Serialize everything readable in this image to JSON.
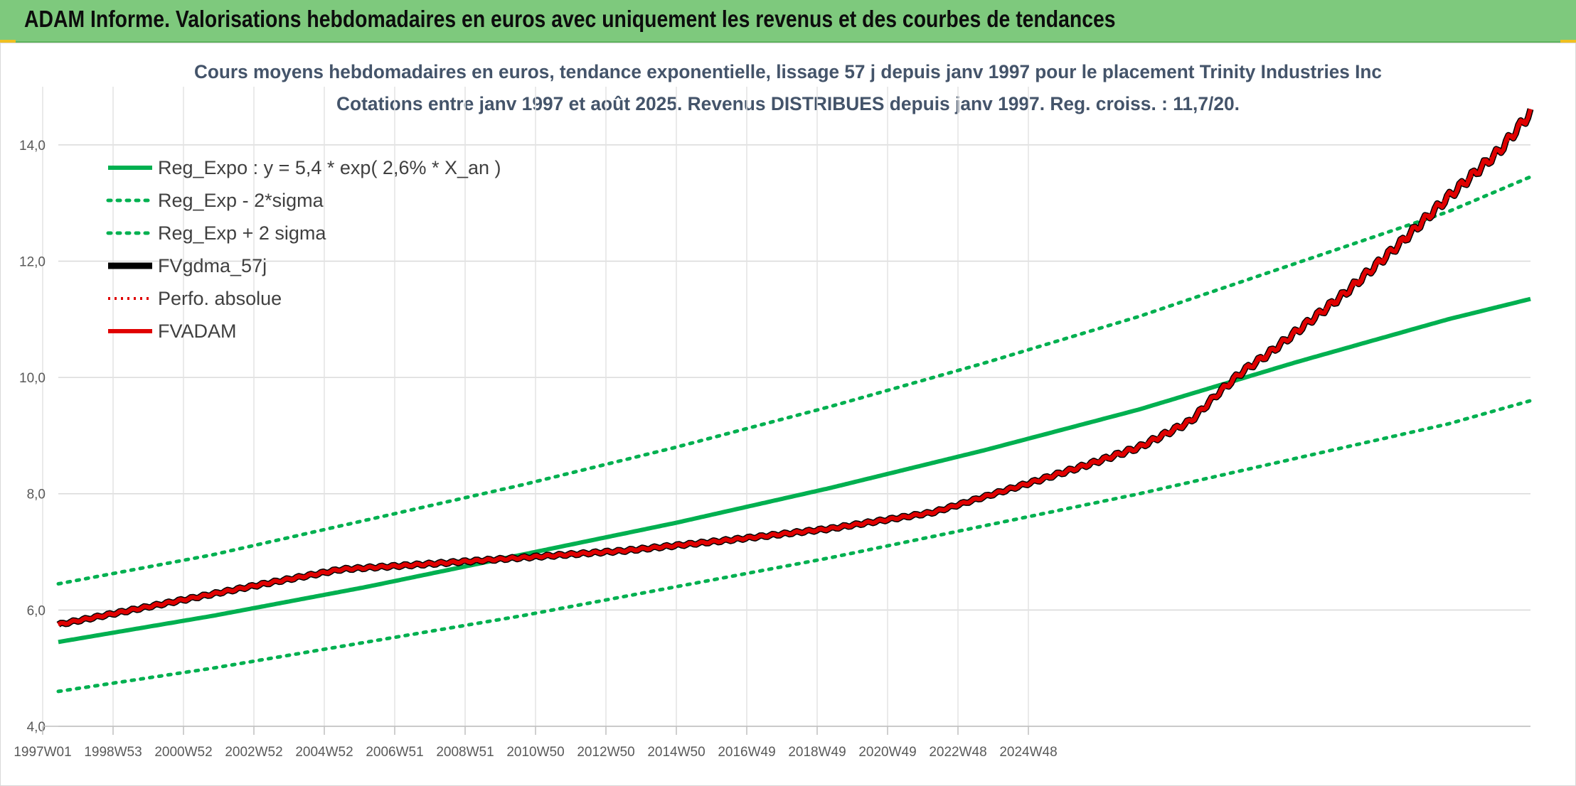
{
  "banner": {
    "title": "ADAM Informe. Valorisations hebdomadaires en euros avec uniquement les revenus et des courbes de tendances"
  },
  "chart_data": {
    "type": "line",
    "title_lines": [
      "Cours moyens hebdomadaires en euros, tendance exponentielle, lissage 57 j depuis janv 1997 pour le placement Trinity Industries Inc",
      "Cotations entre janv 1997 et août 2025. Revenus DISTRIBUES depuis janv 1997. Reg. croiss. : 11,7/20."
    ],
    "xlabel": "",
    "ylabel": "",
    "x_start_year": 1997,
    "x_end_year": 2025.6,
    "x_ticks": [
      "1997W01",
      "1998W53",
      "2000W52",
      "2002W52",
      "2004W52",
      "2006W51",
      "2008W51",
      "2010W50",
      "2012W50",
      "2014W50",
      "2016W49",
      "2018W49",
      "2020W49",
      "2022W48",
      "2024W48"
    ],
    "y_ticks": [
      "4,0",
      "6,0",
      "8,0",
      "10,0",
      "12,0",
      "14,0"
    ],
    "ylim": [
      4,
      15
    ],
    "grid": true,
    "legend_position": "top-left",
    "colors": {
      "green": "#00b050",
      "black": "#000000",
      "red": "#e00000"
    },
    "series": [
      {
        "name": "Reg_Expo : y = 5,4 * exp( 2,6% *  X_an )",
        "style": "green-solid",
        "x": [
          1997,
          2000,
          2003,
          2006,
          2009,
          2012,
          2015,
          2018,
          2021,
          2024,
          2025.6
        ],
        "y": [
          5.45,
          5.9,
          6.4,
          6.95,
          7.5,
          8.1,
          8.75,
          9.45,
          10.25,
          11.0,
          11.35
        ]
      },
      {
        "name": "Reg_Exp - 2*sigma",
        "style": "green-dotted",
        "x": [
          1997,
          2000,
          2003,
          2006,
          2009,
          2012,
          2015,
          2018,
          2021,
          2024,
          2025.6
        ],
        "y": [
          4.6,
          5.0,
          5.45,
          5.9,
          6.4,
          6.9,
          7.45,
          8.0,
          8.6,
          9.2,
          9.6
        ]
      },
      {
        "name": "Reg_Exp + 2 sigma",
        "style": "green-dotted",
        "x": [
          1997,
          2000,
          2003,
          2006,
          2009,
          2012,
          2015,
          2018,
          2021,
          2024,
          2025.6
        ],
        "y": [
          6.45,
          6.95,
          7.55,
          8.15,
          8.8,
          9.5,
          10.25,
          11.05,
          11.95,
          12.85,
          13.45
        ]
      },
      {
        "name": "FVgdma_57j",
        "style": "black-solid",
        "x": [
          1997,
          1999,
          2001,
          2002.5,
          2004,
          2006,
          2008,
          2010,
          2012,
          2014,
          2015,
          2016,
          2017,
          2018,
          2019,
          2019.5,
          2020,
          2020.5,
          2021,
          2022,
          2023,
          2024,
          2025,
          2025.6
        ],
        "y": [
          5.75,
          6.1,
          6.45,
          6.7,
          6.78,
          6.9,
          7.02,
          7.2,
          7.4,
          7.68,
          7.95,
          8.22,
          8.5,
          8.8,
          9.25,
          9.7,
          10.1,
          10.4,
          10.75,
          11.45,
          12.25,
          13.1,
          13.9,
          14.55
        ]
      },
      {
        "name": "Perfo. absolue",
        "style": "red-dotted",
        "x": [
          1997,
          1999,
          2001,
          2002.5,
          2004,
          2006,
          2008,
          2010,
          2012,
          2014,
          2015,
          2016,
          2017,
          2018,
          2019,
          2019.5,
          2020,
          2020.5,
          2021,
          2022,
          2023,
          2024,
          2025,
          2025.6
        ],
        "y": [
          5.75,
          6.1,
          6.45,
          6.7,
          6.78,
          6.9,
          7.02,
          7.2,
          7.4,
          7.68,
          7.95,
          8.22,
          8.5,
          8.8,
          9.25,
          9.7,
          10.1,
          10.4,
          10.75,
          11.45,
          12.25,
          13.1,
          13.9,
          14.55
        ]
      },
      {
        "name": "FVADAM",
        "style": "red-solid",
        "x": [
          1997,
          1999,
          2001,
          2002.5,
          2004,
          2006,
          2008,
          2010,
          2012,
          2014,
          2015,
          2016,
          2017,
          2018,
          2019,
          2019.5,
          2020,
          2020.5,
          2021,
          2022,
          2023,
          2024,
          2025,
          2025.6
        ],
        "y": [
          5.75,
          6.1,
          6.45,
          6.7,
          6.78,
          6.9,
          7.02,
          7.2,
          7.4,
          7.68,
          7.95,
          8.22,
          8.5,
          8.8,
          9.25,
          9.7,
          10.1,
          10.4,
          10.75,
          11.45,
          12.25,
          13.1,
          13.9,
          14.55
        ]
      }
    ]
  }
}
